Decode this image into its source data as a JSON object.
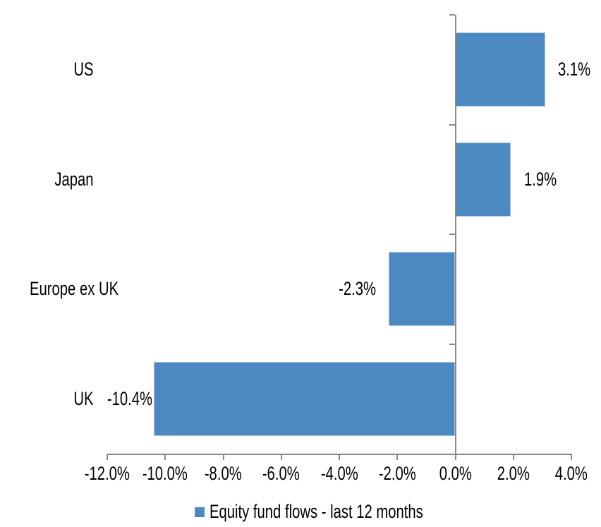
{
  "chart_data": {
    "type": "bar",
    "orientation": "horizontal",
    "title": "",
    "xlabel": "",
    "ylabel": "",
    "categories": [
      "US",
      "Japan",
      "Europe ex UK",
      "UK"
    ],
    "series": [
      {
        "name": "Equity fund flows - last 12 months",
        "color": "#4C89C0",
        "values": [
          3.1,
          1.9,
          -2.3,
          -10.4
        ],
        "value_labels": [
          "3.1%",
          "1.9%",
          "-2.3%",
          "-10.4%"
        ]
      }
    ],
    "xlim": [
      -12,
      4
    ],
    "x_ticks": [
      -12,
      -10,
      -8,
      -6,
      -4,
      -2,
      0,
      2,
      4
    ],
    "x_tick_labels": [
      "-12.0%",
      "-10.0%",
      "-8.0%",
      "-6.0%",
      "-4.0%",
      "-2.0%",
      "0.0%",
      "2.0%",
      "4.0%"
    ],
    "grid": false,
    "legend": {
      "position": "bottom",
      "items": [
        {
          "label": "Equity fund flows - last 12 months",
          "color": "#4C89C0",
          "marker": "square"
        }
      ]
    },
    "colors": {
      "bar": "#4C89C0",
      "bar_edge": "#A7C4DF",
      "axis": "#898989",
      "text": "#000000",
      "background": "#FFFFFF"
    }
  }
}
